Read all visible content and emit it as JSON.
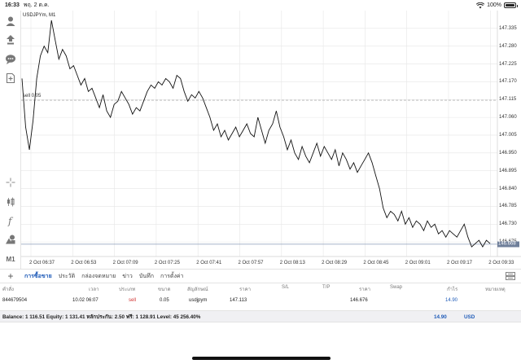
{
  "status_bar": {
    "time": "16:33",
    "date": "พฤ. 2 ต.ค.",
    "battery": "100%"
  },
  "chart": {
    "symbol_label": "USDJPYm, M1",
    "order_label": "sell 0.05",
    "current_price": "146.668",
    "price_ticks": [
      "147.335",
      "147.280",
      "147.225",
      "147.170",
      "147.115",
      "147.060",
      "147.005",
      "146.950",
      "146.895",
      "146.840",
      "146.785",
      "146.730",
      "146.675"
    ],
    "time_ticks": [
      "2 Oct 06:37",
      "2 Oct 06:53",
      "2 Oct 07:09",
      "2 Oct 07:25",
      "2 Oct 07:41",
      "2 Oct 07:57",
      "2 Oct 08:13",
      "2 Oct 08:29",
      "2 Oct 08:45",
      "2 Oct 09:01",
      "2 Oct 09:17",
      "2 Oct 09:33"
    ],
    "colors": {
      "line": "#111111",
      "grid": "#e6e6e6",
      "order_line": "#9a9a9a",
      "bid_line": "#8a9bb8",
      "price_tag": "#6f7f9a"
    }
  },
  "chart_data": {
    "type": "line",
    "title": "USDJPYm, M1",
    "xlabel": "",
    "ylabel": "",
    "ylim": [
      146.63,
      147.39
    ],
    "grid": true,
    "x_range": [
      "2 Oct 06:35",
      "2 Oct 09:38"
    ],
    "series": [
      {
        "values": [
          147.18,
          147.03,
          146.96,
          147.05,
          147.18,
          147.25,
          147.28,
          147.26,
          147.36,
          147.3,
          147.24,
          147.27,
          147.25,
          147.21,
          147.22,
          147.19,
          147.16,
          147.18,
          147.14,
          147.15,
          147.12,
          147.09,
          147.13,
          147.08,
          147.06,
          147.1,
          147.11,
          147.14,
          147.12,
          147.1,
          147.07,
          147.09,
          147.08,
          147.11,
          147.14,
          147.16,
          147.15,
          147.17,
          147.16,
          147.18,
          147.17,
          147.15,
          147.19,
          147.18,
          147.14,
          147.11,
          147.13,
          147.12,
          147.14,
          147.12,
          147.09,
          147.06,
          147.02,
          147.04,
          147.0,
          147.02,
          146.99,
          147.01,
          147.03,
          147.0,
          147.02,
          147.04,
          147.01,
          147.0,
          147.06,
          147.02,
          146.98,
          147.02,
          147.04,
          147.08,
          147.03,
          147.0,
          146.96,
          146.99,
          146.95,
          146.93,
          146.97,
          146.94,
          146.92,
          146.95,
          146.98,
          146.94,
          146.97,
          146.95,
          146.93,
          146.96,
          146.91,
          146.95,
          146.93,
          146.9,
          146.92,
          146.89,
          146.91,
          146.93,
          146.95,
          146.92,
          146.88,
          146.84,
          146.78,
          146.75,
          146.77,
          146.76,
          146.74,
          146.77,
          146.73,
          146.75,
          146.72,
          146.74,
          146.73,
          146.71,
          146.74,
          146.72,
          146.73,
          146.7,
          146.71,
          146.69,
          146.71,
          146.7,
          146.69,
          146.71,
          146.73,
          146.69,
          146.66,
          146.67,
          146.68,
          146.66,
          146.68,
          146.67
        ]
      }
    ],
    "order_level": 147.113,
    "bid_level": 146.668
  },
  "tabs": {
    "add_label": "+",
    "items": [
      "การซื้อขาย",
      "ประวัติ",
      "กล่องจดหมาย",
      "ข่าว",
      "บันทึก",
      "การตั้งค่า"
    ],
    "active": "การซื้อขาย"
  },
  "table": {
    "headers": [
      "คำสั่ง",
      "เวลา",
      "ประเภท",
      "ขนาด",
      "สัญลักษณ์",
      "ราคา",
      "S/L",
      "T/P",
      "ราคา",
      "Swap",
      "กำไร",
      "หมายเหตุ"
    ],
    "row": {
      "order": "844679504",
      "time": "10.02 06:07",
      "type": "sell",
      "size": "0.05",
      "symbol": "usdjpym",
      "open_price": "147.113",
      "sl": "",
      "tp": "",
      "price": "146.676",
      "swap": "",
      "profit": "14.90",
      "comment": ""
    },
    "balance_text": "Balance: 1 116.51 Equity: 1 131.41 หลักประกัน: 2.50 ฟรี: 1 128.91 Level: 45 256.40%",
    "balance_profit": "14.90",
    "balance_currency": "USD"
  }
}
